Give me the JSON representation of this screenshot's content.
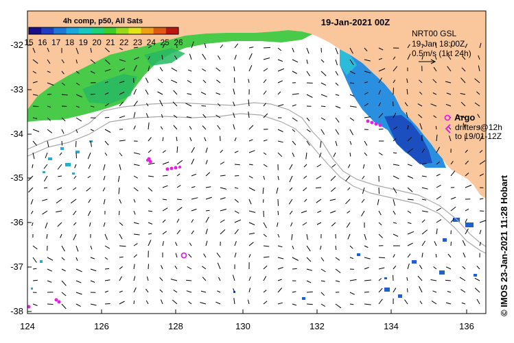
{
  "map": {
    "title": "19-Jan-2021 00Z",
    "colorbar": {
      "title": "4h comp, p50, All Sats",
      "labels": [
        "15",
        "16",
        "17",
        "18",
        "19",
        "20",
        "21",
        "22",
        "23",
        "24",
        "25",
        "26"
      ],
      "colors": [
        "#1a0d8a",
        "#1f3dbf",
        "#1e78d8",
        "#1ba6e0",
        "#19c7c0",
        "#1fcf7a",
        "#3dcc2a",
        "#9ad81c",
        "#e4e41a",
        "#f0a018",
        "#e05a14",
        "#b81810"
      ]
    },
    "velocity_legend": {
      "line1": "NRT00 GSL",
      "line2": "19-Jan 18:00Z",
      "line3": "0.5m/s (1kt 24h)"
    },
    "argo_legend": {
      "title": "Argo",
      "line1": "drifters@12h",
      "line2": "to 19/01-12Z"
    },
    "credit": "© IMOS 23-Jan-2021 11:28 Hobart",
    "x_ticks": [
      "124",
      "126",
      "128",
      "130",
      "132",
      "134",
      "136"
    ],
    "y_ticks": [
      "-32",
      "-33",
      "-34",
      "-35",
      "-36",
      "-37",
      "-38"
    ],
    "colors": {
      "land": "#f9c79b",
      "ocean": "#ffffff",
      "argo": "#e81ee8",
      "contour": "#a8a8a8"
    }
  }
}
